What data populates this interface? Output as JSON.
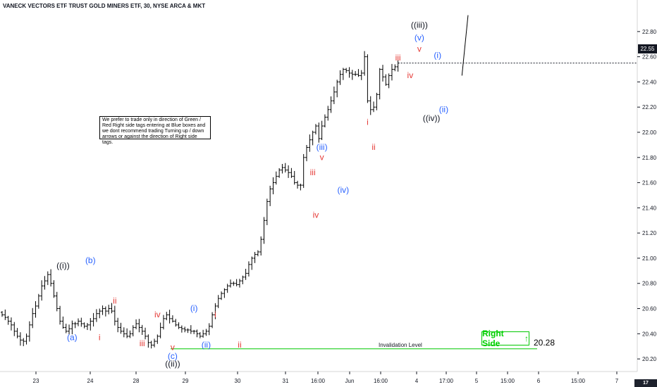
{
  "header": {
    "title": "VANECK VECTORS ETF TRUST GOLD MINERS ETF, 30, NYSE ARCA & MKT"
  },
  "note": {
    "text": "We prefer to trade only in direction of Green / Red Right side tags entering at Blue boxes and we dont recommend trading Turning up / down arrows or against the direction of Right side tags."
  },
  "right_side": {
    "label": "Right Side",
    "arrow": "↑",
    "value": "20.28",
    "color": "#00c800"
  },
  "invalidation": {
    "label": "Invalidation Level",
    "color": "#00c800"
  },
  "current_price": {
    "label": "22.55"
  },
  "logo": {
    "text": "17"
  },
  "colors": {
    "wave_black": "#131722",
    "wave_blue": "#2962ff",
    "wave_red": "#e53935",
    "bars": "#000000"
  },
  "chart_data": {
    "type": "ohlc-bar",
    "title": "VANECK VECTORS ETF TRUST GOLD MINERS ETF, 30, NYSE ARCA & MKT",
    "ylim": [
      20.1,
      22.95
    ],
    "y_ticks": [
      "22.80",
      "22.60",
      "22.40",
      "22.20",
      "22.00",
      "21.80",
      "21.60",
      "21.40",
      "21.20",
      "21.00",
      "20.80",
      "20.60",
      "20.40",
      "20.20"
    ],
    "x_ticks": [
      "23",
      "24",
      "28",
      "29",
      "30",
      "31",
      "16:00",
      "Jun",
      "16:00",
      "4",
      "17:00",
      "5",
      "15:00",
      "6",
      "15:00",
      "7"
    ],
    "series": [
      {
        "values": [
          20.55,
          20.53,
          20.5,
          20.47,
          20.42,
          20.38,
          20.35,
          20.34,
          20.38,
          20.47,
          20.56,
          20.62,
          20.7,
          20.78,
          20.82,
          20.87,
          20.8,
          20.7,
          20.6,
          20.5,
          20.45,
          20.42,
          20.44,
          20.48,
          20.48,
          20.5,
          20.48,
          20.46,
          20.47,
          20.5,
          20.52,
          20.56,
          20.58,
          20.6,
          20.58,
          20.6,
          20.58,
          20.5,
          20.45,
          20.42,
          20.4,
          20.38,
          20.4,
          20.45,
          20.48,
          20.45,
          20.42,
          20.38,
          20.33,
          20.31,
          20.34,
          20.38,
          20.45,
          20.52,
          20.55,
          20.52,
          20.5,
          20.47,
          20.45,
          20.44,
          20.43,
          20.43,
          20.42,
          20.42,
          20.4,
          20.38,
          20.4,
          20.42,
          20.46,
          20.55,
          20.62,
          20.68,
          20.72,
          20.75,
          20.78,
          20.8,
          20.8,
          20.79,
          20.82,
          20.85,
          20.88,
          20.95,
          21.0,
          21.03,
          21.05,
          21.15,
          21.3,
          21.45,
          21.55,
          21.6,
          21.65,
          21.7,
          21.72,
          21.7,
          21.68,
          21.65,
          21.6,
          21.58,
          21.58,
          21.8,
          21.88,
          21.94,
          22.0,
          22.05,
          21.95,
          22.05,
          22.12,
          22.18,
          22.25,
          22.32,
          22.4,
          22.46,
          22.5,
          22.49,
          22.47,
          22.46,
          22.46,
          22.45,
          22.47,
          22.6,
          22.25,
          22.18,
          22.2,
          22.3,
          22.5,
          22.44,
          22.38,
          22.45,
          22.5,
          22.52,
          22.55
        ]
      }
    ],
    "wave_labels": [
      {
        "text": "((i))",
        "x": 20,
        "y": 20.92,
        "color": "black"
      },
      {
        "text": "(a)",
        "x": 23,
        "y": 20.35,
        "color": "blue"
      },
      {
        "text": "(b)",
        "x": 29,
        "y": 20.96,
        "color": "blue"
      },
      {
        "text": "i",
        "x": 32,
        "y": 20.35,
        "color": "red"
      },
      {
        "text": "ii",
        "x": 37,
        "y": 20.64,
        "color": "red"
      },
      {
        "text": "iii",
        "x": 46,
        "y": 20.3,
        "color": "red"
      },
      {
        "text": "iv",
        "x": 51,
        "y": 20.53,
        "color": "red"
      },
      {
        "text": "v",
        "x": 56,
        "y": 20.27,
        "color": "red"
      },
      {
        "text": "(c)",
        "x": 56,
        "y": 20.2,
        "color": "blue"
      },
      {
        "text": "((ii))",
        "x": 56,
        "y": 20.14,
        "color": "black"
      },
      {
        "text": "(i)",
        "x": 63,
        "y": 20.58,
        "color": "blue"
      },
      {
        "text": "(ii)",
        "x": 67,
        "y": 20.29,
        "color": "blue"
      },
      {
        "text": "i",
        "x": 70,
        "y": 20.53,
        "color": "red"
      },
      {
        "text": "ii",
        "x": 78,
        "y": 20.29,
        "color": "red"
      },
      {
        "text": "iii",
        "x": 102,
        "y": 21.66,
        "color": "red"
      },
      {
        "text": "(iii)",
        "x": 105,
        "y": 21.86,
        "color": "blue"
      },
      {
        "text": "v",
        "x": 105,
        "y": 21.78,
        "color": "red"
      },
      {
        "text": "iv",
        "x": 103,
        "y": 21.32,
        "color": "red"
      },
      {
        "text": "(iv)",
        "x": 112,
        "y": 21.52,
        "color": "blue"
      },
      {
        "text": "i",
        "x": 120,
        "y": 22.06,
        "color": "red"
      },
      {
        "text": "ii",
        "x": 122,
        "y": 21.86,
        "color": "red"
      },
      {
        "text": "iii",
        "x": 130,
        "y": 22.57,
        "color": "red"
      },
      {
        "text": "iv",
        "x": 134,
        "y": 22.43,
        "color": "red"
      },
      {
        "text": "v",
        "x": 137,
        "y": 22.64,
        "color": "red"
      },
      {
        "text": "(v)",
        "x": 137,
        "y": 22.73,
        "color": "blue"
      },
      {
        "text": "((iii))",
        "x": 137,
        "y": 22.83,
        "color": "black"
      },
      {
        "text": "((iv))",
        "x": 141,
        "y": 22.09,
        "color": "black"
      },
      {
        "text": "(i)",
        "x": 143,
        "y": 22.59,
        "color": "blue"
      },
      {
        "text": "(ii)",
        "x": 145,
        "y": 22.16,
        "color": "blue"
      }
    ],
    "invalidation_level": 20.28,
    "projection": [
      [
        151,
        22.45
      ],
      [
        153,
        22.93
      ]
    ]
  }
}
